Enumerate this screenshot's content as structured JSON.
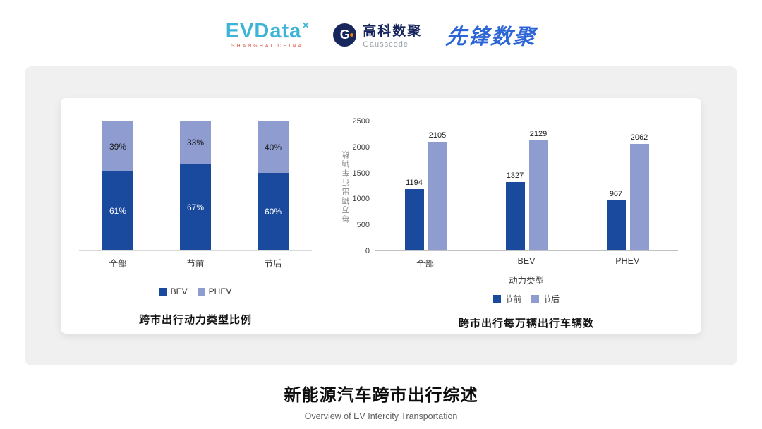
{
  "header": {
    "evdata": {
      "name": "EVData",
      "mark": "✕",
      "sub": "SHANGHAI CHINA"
    },
    "gausscode": {
      "icon_letter": "G",
      "cn": "高科数聚",
      "en": "Gausscode"
    },
    "pioneer": "先锋数聚"
  },
  "chart_data": [
    {
      "type": "bar",
      "subtype": "stacked-100-percent",
      "title": "跨市出行动力类型比例",
      "categories": [
        "全部",
        "节前",
        "节后"
      ],
      "series": [
        {
          "name": "BEV",
          "color": "#1a4a9e",
          "values": [
            61,
            67,
            60
          ]
        },
        {
          "name": "PHEV",
          "color": "#8e9cd0",
          "values": [
            39,
            33,
            40
          ]
        }
      ],
      "value_suffix": "%",
      "legend_position": "bottom",
      "grid": false
    },
    {
      "type": "bar",
      "subtype": "grouped",
      "title": "跨市出行每万辆出行车辆数",
      "categories": [
        "全部",
        "BEV",
        "PHEV"
      ],
      "series": [
        {
          "name": "节前",
          "color": "#1a4a9e",
          "values": [
            1194,
            1327,
            967
          ]
        },
        {
          "name": "节后",
          "color": "#8e9cd0",
          "values": [
            2105,
            2129,
            2062
          ]
        }
      ],
      "xlabel": "动力类型",
      "ylabel": "每万辆出行车辆数",
      "ylim": [
        0,
        2500
      ],
      "yticks": [
        0,
        500,
        1000,
        1500,
        2000,
        2500
      ],
      "legend_position": "bottom",
      "grid": false
    }
  ],
  "footer": {
    "title": "新能源汽车跨市出行综述",
    "subtitle": "Overview of EV Intercity Transportation"
  }
}
